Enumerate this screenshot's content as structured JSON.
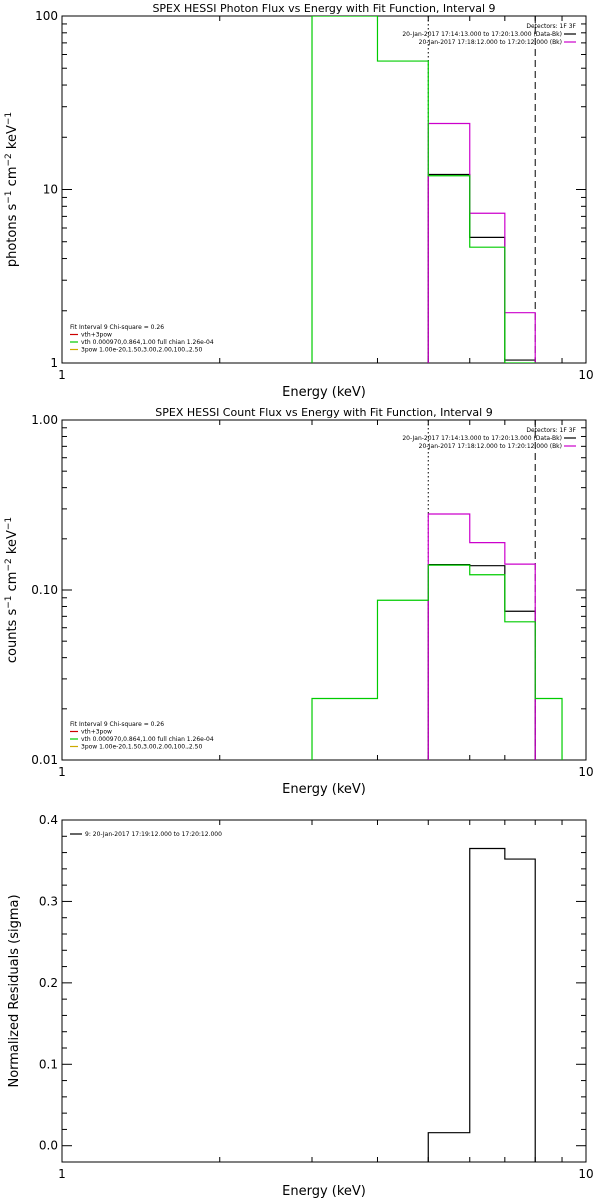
{
  "chart_data": [
    {
      "type": "line",
      "step": true,
      "title": "SPEX HESSI Photon Flux vs Energy with Fit Function, Interval 9",
      "xlabel": "Energy (keV)",
      "xscale": "log",
      "yscale": "log",
      "xlim": [
        1,
        10
      ],
      "ylim": [
        1,
        100
      ],
      "xticks": [
        {
          "v": 1,
          "label": "1"
        },
        {
          "v": 10,
          "label": "10"
        }
      ],
      "yticks": [
        {
          "v": 1,
          "label": "1"
        },
        {
          "v": 10,
          "label": "10"
        },
        {
          "v": 100,
          "label": "100"
        }
      ],
      "ylabel": {
        "base": "photons s",
        "e1": "−1",
        "mid": " cm",
        "e2": "−2",
        "mid2": " keV",
        "e3": "−1"
      },
      "vlines": [
        {
          "x": 5,
          "style": "dotted"
        },
        {
          "x": 8,
          "style": "dashed"
        }
      ],
      "legend_right": {
        "header": "Detectors: 1F 3F",
        "lines": [
          {
            "text": "20-Jan-2017 17:14:13.000 to 17:20:13.000 (Data-Bk)",
            "color": "#000000"
          },
          {
            "text": "20-Jan-2017 17:18:12.000 to 17:20:12.000 (Bk)",
            "color": "#cc00cc"
          }
        ]
      },
      "legend_left": {
        "header": "Fit Interval 9   Chi-square = 0.26",
        "lines": [
          {
            "text": "vth+3pow",
            "color": "#cc0000"
          },
          {
            "text": "vth 0.000970,0.864,1.00  full chian 1.26e-04",
            "color": "#00cc00"
          },
          {
            "text": "3pow 1.00e-20,1.50,3.00,2.00,100.,2.50",
            "color": "#ccaa00"
          }
        ]
      },
      "series": [
        {
          "color": "#000000",
          "bins": [
            {
              "x0": 5,
              "x1": 6,
              "y": 12.2
            },
            {
              "x0": 6,
              "x1": 7,
              "y": 5.3
            },
            {
              "x0": 7,
              "x1": 8,
              "y": 1.04
            }
          ]
        },
        {
          "color": "#cc00cc",
          "bins": [
            {
              "x0": 5,
              "x1": 6,
              "y": 24
            },
            {
              "x0": 6,
              "x1": 7,
              "y": 7.3
            },
            {
              "x0": 7,
              "x1": 8,
              "y": 1.95
            }
          ]
        },
        {
          "color": "#00cc00",
          "bins": [
            {
              "x0": 3,
              "x1": 4,
              "y": 100
            },
            {
              "x0": 4,
              "x1": 5,
              "y": 55
            },
            {
              "x0": 5,
              "x1": 6,
              "y": 12
            },
            {
              "x0": 6,
              "x1": 7,
              "y": 4.65
            },
            {
              "x0": 7,
              "x1": 8,
              "y": 1
            }
          ]
        }
      ]
    },
    {
      "type": "line",
      "step": true,
      "title": "SPEX HESSI Count Flux vs Energy with Fit Function, Interval 9",
      "xlabel": "Energy (keV)",
      "xscale": "log",
      "yscale": "log",
      "xlim": [
        1,
        10
      ],
      "ylim": [
        0.01,
        1
      ],
      "xticks": [
        {
          "v": 1,
          "label": "1"
        },
        {
          "v": 10,
          "label": "10"
        }
      ],
      "yticks": [
        {
          "v": 0.01,
          "label": "0.01"
        },
        {
          "v": 0.1,
          "label": "0.10"
        },
        {
          "v": 1,
          "label": "1.00"
        }
      ],
      "ylabel": {
        "base": "counts s",
        "e1": "−1",
        "mid": " cm",
        "e2": "−2",
        "mid2": " keV",
        "e3": "−1"
      },
      "vlines": [
        {
          "x": 5,
          "style": "dotted"
        },
        {
          "x": 8,
          "style": "dashed"
        }
      ],
      "legend_right": {
        "header": "Detectors: 1F 3F",
        "lines": [
          {
            "text": "20-Jan-2017 17:14:13.000 to 17:20:13.000 (Data-Bk)",
            "color": "#000000"
          },
          {
            "text": "20-Jan-2017 17:18:12.000 to 17:20:12.000 (Bk)",
            "color": "#cc00cc"
          }
        ]
      },
      "legend_left": {
        "header": "Fit Interval 9   Chi-square = 0.26",
        "lines": [
          {
            "text": "vth+3pow",
            "color": "#cc0000"
          },
          {
            "text": "vth 0.000970,0.864,1.00  full chian 1.26e-04",
            "color": "#00cc00"
          },
          {
            "text": "3pow 1.00e-20,1.50,3.00,2.00,100.,2.50",
            "color": "#ccaa00"
          }
        ]
      },
      "series": [
        {
          "color": "#000000",
          "bins": [
            {
              "x0": 5,
              "x1": 6,
              "y": 0.141
            },
            {
              "x0": 6,
              "x1": 7,
              "y": 0.139
            },
            {
              "x0": 7,
              "x1": 8,
              "y": 0.075
            }
          ]
        },
        {
          "color": "#cc00cc",
          "bins": [
            {
              "x0": 5,
              "x1": 6,
              "y": 0.28
            },
            {
              "x0": 6,
              "x1": 7,
              "y": 0.19
            },
            {
              "x0": 7,
              "x1": 8,
              "y": 0.142
            }
          ]
        },
        {
          "color": "#00cc00",
          "bins": [
            {
              "x0": 3,
              "x1": 4,
              "y": 0.023
            },
            {
              "x0": 4,
              "x1": 5,
              "y": 0.087
            },
            {
              "x0": 5,
              "x1": 6,
              "y": 0.14
            },
            {
              "x0": 6,
              "x1": 7,
              "y": 0.123
            },
            {
              "x0": 7,
              "x1": 8,
              "y": 0.065
            },
            {
              "x0": 8,
              "x1": 9,
              "y": 0.023
            }
          ]
        }
      ]
    },
    {
      "type": "line",
      "step": true,
      "title": "",
      "xlabel": "Energy (keV)",
      "ylabel_text": "Normalized Residuals (sigma)",
      "xscale": "log",
      "yscale": "linear",
      "xlim": [
        1,
        10
      ],
      "ylim": [
        -0.02,
        0.4
      ],
      "xticks": [
        {
          "v": 1,
          "label": "1"
        },
        {
          "v": 10,
          "label": "10"
        }
      ],
      "yticks": [
        {
          "v": 0,
          "label": "0.0"
        },
        {
          "v": 0.1,
          "label": "0.1"
        },
        {
          "v": 0.2,
          "label": "0.2"
        },
        {
          "v": 0.3,
          "label": "0.3"
        },
        {
          "v": 0.4,
          "label": "0.4"
        }
      ],
      "legend_left_top": {
        "lines": [
          {
            "text": "9: 20-Jan-2017 17:19:12.000 to 17:20:12.000",
            "color": "#000000"
          }
        ]
      },
      "series": [
        {
          "color": "#000000",
          "bins": [
            {
              "x0": 5,
              "x1": 6,
              "y": 0.016
            },
            {
              "x0": 6,
              "x1": 7,
              "y": 0.365
            },
            {
              "x0": 7,
              "x1": 8,
              "y": 0.352
            }
          ]
        }
      ]
    }
  ]
}
